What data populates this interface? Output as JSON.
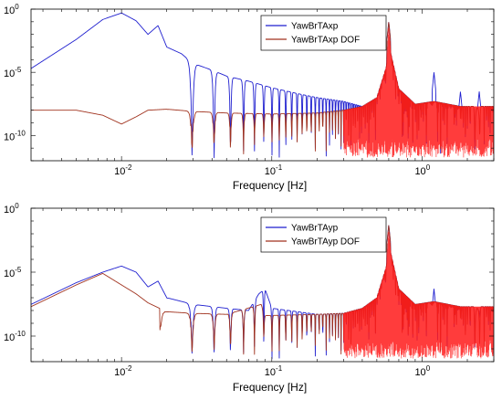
{
  "colors": {
    "blue": "#1f1fcf",
    "dark_red": "#a0321e",
    "bright_red": "#ff1a1a",
    "axis": "#000000"
  },
  "chart_data": [
    {
      "type": "line",
      "title": "",
      "xlabel": "Frequency [Hz]",
      "ylabel": "",
      "xscale": "log",
      "yscale": "log",
      "xlim": [
        0.0025,
        3.0
      ],
      "ylim": [
        1e-12,
        1
      ],
      "grid": false,
      "legend_position": "top-right-inset",
      "x_tick_labels": [
        {
          "value": 0.01,
          "base": "10",
          "exp": "-2"
        },
        {
          "value": 0.1,
          "base": "10",
          "exp": "-1"
        },
        {
          "value": 1,
          "base": "10",
          "exp": "0"
        }
      ],
      "y_tick_labels": [
        {
          "value": 1,
          "base": "10",
          "exp": "0"
        },
        {
          "value": 1e-05,
          "base": "10",
          "exp": "-5"
        },
        {
          "value": 1e-10,
          "base": "10",
          "exp": "-10"
        }
      ],
      "series": [
        {
          "name": "YawBrTAxp",
          "color": "#1f1fcf",
          "envelope": [
            [
              0.0025,
              2e-05
            ],
            [
              0.005,
              0.004
            ],
            [
              0.0075,
              0.15
            ],
            [
              0.01,
              0.5
            ],
            [
              0.0125,
              0.12
            ],
            [
              0.015,
              0.01
            ],
            [
              0.0175,
              0.05
            ],
            [
              0.02,
              0.001
            ],
            [
              0.025,
              0.0003
            ],
            [
              0.03,
              5e-05
            ],
            [
              0.04,
              1.5e-05
            ],
            [
              0.05,
              5e-06
            ],
            [
              0.07,
              2e-06
            ],
            [
              0.1,
              6e-07
            ],
            [
              0.15,
              2e-07
            ],
            [
              0.2,
              1e-07
            ],
            [
              0.3,
              5e-08
            ],
            [
              0.4,
              2e-08
            ],
            [
              0.5,
              1e-07
            ],
            [
              0.58,
              3e-05
            ],
            [
              0.6,
              0.05
            ],
            [
              0.62,
              0.0003
            ],
            [
              0.7,
              5e-07
            ],
            [
              0.9,
              3e-08
            ],
            [
              1.2,
              5e-08
            ],
            [
              1.8,
              2e-08
            ],
            [
              3.0,
              2e-08
            ]
          ],
          "peaks": [
            [
              0.6,
              0.1
            ],
            [
              1.2,
              1e-05
            ],
            [
              1.8,
              3e-07
            ],
            [
              2.4,
              3e-07
            ]
          ],
          "oscillation_start": 0.025,
          "trough_floor": 2e-12
        },
        {
          "name": "YawBrTAxp DOF",
          "color": "#a0321e",
          "envelope": [
            [
              0.0025,
              1e-08
            ],
            [
              0.005,
              1e-08
            ],
            [
              0.0075,
              4e-09
            ],
            [
              0.01,
              8e-10
            ],
            [
              0.0125,
              3e-09
            ],
            [
              0.015,
              1e-08
            ],
            [
              0.02,
              1.2e-08
            ],
            [
              0.03,
              8e-09
            ],
            [
              0.05,
              6e-09
            ],
            [
              0.1,
              5e-09
            ],
            [
              0.2,
              6e-09
            ],
            [
              0.3,
              1e-08
            ],
            [
              0.4,
              2e-08
            ],
            [
              0.5,
              1e-07
            ],
            [
              0.58,
              3e-05
            ],
            [
              0.6,
              0.05
            ],
            [
              0.62,
              0.0003
            ],
            [
              0.7,
              5e-07
            ],
            [
              0.9,
              3e-08
            ],
            [
              1.2,
              5e-08
            ],
            [
              1.8,
              2e-08
            ],
            [
              3.0,
              2e-08
            ]
          ],
          "peaks": [
            [
              0.6,
              0.1
            ]
          ],
          "oscillation_start": 0.02,
          "trough_floor": 1e-11
        }
      ]
    },
    {
      "type": "line",
      "title": "",
      "xlabel": "Frequency [Hz]",
      "ylabel": "",
      "xscale": "log",
      "yscale": "log",
      "xlim": [
        0.0025,
        3.0
      ],
      "ylim": [
        1e-12,
        1
      ],
      "grid": false,
      "legend_position": "top-right-inset",
      "x_tick_labels": [
        {
          "value": 0.01,
          "base": "10",
          "exp": "-2"
        },
        {
          "value": 0.1,
          "base": "10",
          "exp": "-1"
        },
        {
          "value": 1,
          "base": "10",
          "exp": "0"
        }
      ],
      "y_tick_labels": [
        {
          "value": 1,
          "base": "10",
          "exp": "0"
        },
        {
          "value": 1e-05,
          "base": "10",
          "exp": "-5"
        },
        {
          "value": 1e-10,
          "base": "10",
          "exp": "-10"
        }
      ],
      "series": [
        {
          "name": "YawBrTAyp",
          "color": "#1f1fcf",
          "envelope": [
            [
              0.0025,
              3e-08
            ],
            [
              0.005,
              1.5e-06
            ],
            [
              0.0075,
              1e-05
            ],
            [
              0.01,
              3e-05
            ],
            [
              0.0125,
              1e-05
            ],
            [
              0.015,
              7e-07
            ],
            [
              0.0175,
              2e-06
            ],
            [
              0.02,
              1e-07
            ],
            [
              0.03,
              3e-08
            ],
            [
              0.05,
              1.5e-08
            ],
            [
              0.07,
              1e-08
            ],
            [
              0.082,
              2e-07
            ],
            [
              0.09,
              5e-07
            ],
            [
              0.1,
              1.5e-08
            ],
            [
              0.2,
              5e-09
            ],
            [
              0.3,
              6e-09
            ],
            [
              0.4,
              1.5e-08
            ],
            [
              0.5,
              1e-07
            ],
            [
              0.58,
              3e-05
            ],
            [
              0.6,
              0.02
            ],
            [
              0.62,
              0.0003
            ],
            [
              0.7,
              5e-07
            ],
            [
              0.9,
              3e-08
            ],
            [
              1.2,
              5e-08
            ],
            [
              1.8,
              2e-08
            ],
            [
              3.0,
              2e-08
            ]
          ],
          "peaks": [
            [
              0.6,
              0.05
            ],
            [
              1.2,
              5e-07
            ],
            [
              1.8,
              1e-08
            ],
            [
              2.4,
              1e-08
            ]
          ],
          "oscillation_start": 0.02,
          "trough_floor": 5e-12
        },
        {
          "name": "YawBrTAyp DOF",
          "color": "#a0321e",
          "envelope": [
            [
              0.0025,
              2e-08
            ],
            [
              0.005,
              1e-06
            ],
            [
              0.0075,
              8e-06
            ],
            [
              0.01,
              1e-06
            ],
            [
              0.0125,
              2e-07
            ],
            [
              0.015,
              4e-08
            ],
            [
              0.02,
              8e-09
            ],
            [
              0.03,
              6e-09
            ],
            [
              0.05,
              5e-09
            ],
            [
              0.085,
              3e-08
            ],
            [
              0.09,
              4e-09
            ],
            [
              0.2,
              5e-09
            ],
            [
              0.3,
              6e-09
            ],
            [
              0.4,
              1.5e-08
            ],
            [
              0.5,
              1e-07
            ],
            [
              0.58,
              3e-05
            ],
            [
              0.6,
              0.02
            ],
            [
              0.62,
              0.0003
            ],
            [
              0.7,
              5e-07
            ],
            [
              0.9,
              3e-08
            ],
            [
              1.2,
              5e-08
            ],
            [
              1.8,
              2e-08
            ],
            [
              3.0,
              2e-08
            ]
          ],
          "peaks": [
            [
              0.6,
              0.05
            ]
          ],
          "oscillation_start": 0.018,
          "trough_floor": 1e-11
        }
      ]
    }
  ]
}
